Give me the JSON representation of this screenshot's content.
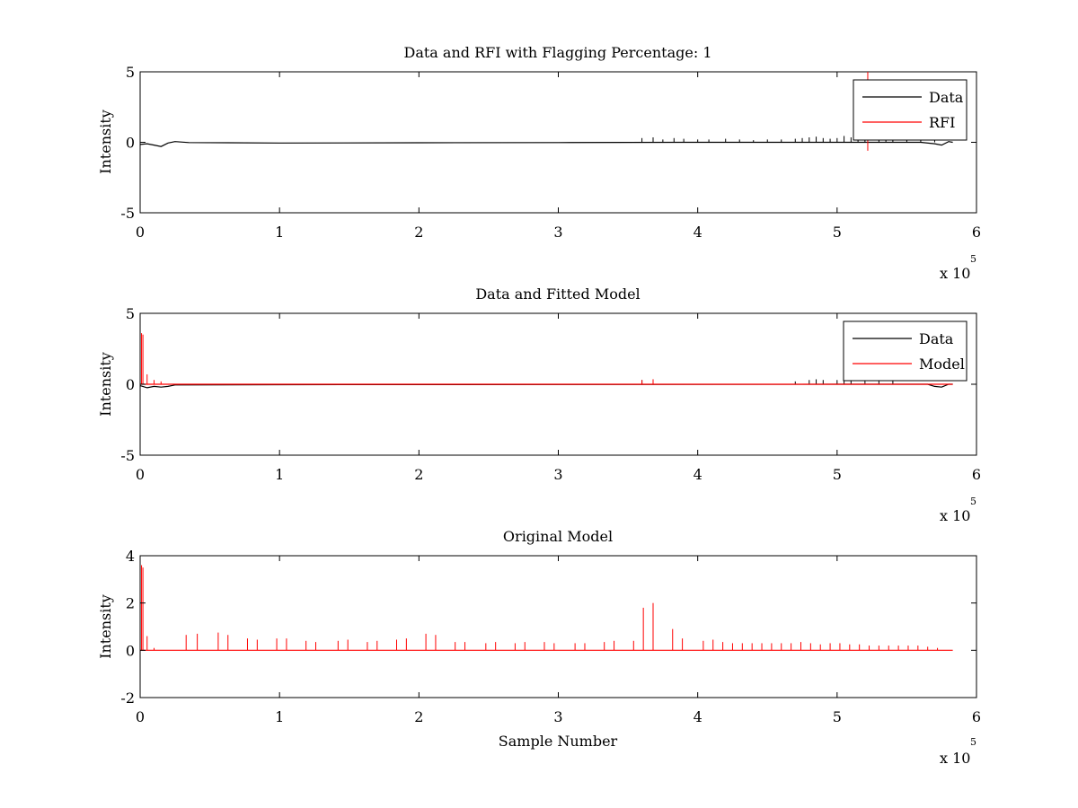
{
  "chart_data": [
    {
      "type": "line",
      "title": "Data and RFI with Flagging Percentage: 1",
      "xlabel": "",
      "ylabel": "Intensity",
      "xlim": [
        0,
        600000
      ],
      "ylim": [
        -5,
        5
      ],
      "x_ticks": [
        "0",
        "1",
        "2",
        "3",
        "4",
        "5",
        "6"
      ],
      "y_ticks": [
        "-5",
        "0",
        "5"
      ],
      "x_multiplier": "x 10",
      "x_exponent": "5",
      "legend": {
        "position": "top-right",
        "entries": [
          {
            "label": "Data",
            "color": "#000000"
          },
          {
            "label": "RFI",
            "color": "#ff0000"
          }
        ]
      },
      "series": [
        {
          "name": "Data",
          "color": "#000000",
          "baseline": [
            [
              0,
              -0.15
            ],
            [
              5000,
              -0.1
            ],
            [
              10000,
              -0.2
            ],
            [
              15000,
              -0.3
            ],
            [
              20000,
              -0.05
            ],
            [
              25000,
              0.05
            ],
            [
              35000,
              -0.02
            ],
            [
              100000,
              -0.05
            ],
            [
              200000,
              -0.03
            ],
            [
              300000,
              -0.02
            ],
            [
              400000,
              0.0
            ],
            [
              500000,
              0.0
            ],
            [
              560000,
              0.0
            ],
            [
              570000,
              -0.1
            ],
            [
              575000,
              -0.2
            ],
            [
              580000,
              0.05
            ],
            [
              583000,
              0.0
            ]
          ],
          "spikes": [
            [
              360000,
              0.3
            ],
            [
              368000,
              0.35
            ],
            [
              375000,
              0.2
            ],
            [
              383000,
              0.3
            ],
            [
              390000,
              0.25
            ],
            [
              400000,
              0.2
            ],
            [
              408000,
              0.2
            ],
            [
              420000,
              0.25
            ],
            [
              430000,
              0.2
            ],
            [
              440000,
              0.15
            ],
            [
              450000,
              0.2
            ],
            [
              460000,
              0.2
            ],
            [
              470000,
              0.25
            ],
            [
              475000,
              0.3
            ],
            [
              480000,
              0.35
            ],
            [
              485000,
              0.4
            ],
            [
              490000,
              0.3
            ],
            [
              495000,
              0.25
            ],
            [
              500000,
              0.3
            ],
            [
              505000,
              0.45
            ],
            [
              510000,
              0.35
            ],
            [
              515000,
              0.3
            ],
            [
              520000,
              0.25
            ],
            [
              530000,
              0.4
            ],
            [
              535000,
              0.3
            ],
            [
              540000,
              0.25
            ],
            [
              550000,
              0.2
            ],
            [
              560000,
              0.25
            ],
            [
              570000,
              0.2
            ]
          ]
        },
        {
          "name": "RFI",
          "color": "#ff0000",
          "spikes": [
            [
              522000,
              5.0
            ],
            [
              522000,
              -0.6
            ]
          ]
        }
      ]
    },
    {
      "type": "line",
      "title": "Data and Fitted Model",
      "xlabel": "",
      "ylabel": "Intensity",
      "xlim": [
        0,
        600000
      ],
      "ylim": [
        -5,
        5
      ],
      "x_ticks": [
        "0",
        "1",
        "2",
        "3",
        "4",
        "5",
        "6"
      ],
      "y_ticks": [
        "-5",
        "0",
        "5"
      ],
      "x_multiplier": "x 10",
      "x_exponent": "5",
      "legend": {
        "position": "top-right",
        "entries": [
          {
            "label": "Data",
            "color": "#000000"
          },
          {
            "label": "Model",
            "color": "#ff0000"
          }
        ]
      },
      "series": [
        {
          "name": "Data",
          "color": "#000000",
          "baseline": [
            [
              0,
              -0.1
            ],
            [
              5000,
              -0.25
            ],
            [
              10000,
              -0.15
            ],
            [
              15000,
              -0.2
            ],
            [
              20000,
              -0.15
            ],
            [
              25000,
              -0.05
            ],
            [
              100000,
              -0.03
            ],
            [
              300000,
              -0.02
            ],
            [
              500000,
              0.0
            ],
            [
              565000,
              0.0
            ],
            [
              570000,
              -0.15
            ],
            [
              575000,
              -0.2
            ],
            [
              580000,
              0.0
            ],
            [
              583000,
              0.0
            ]
          ],
          "spikes": [
            [
              360000,
              0.3
            ],
            [
              368000,
              0.35
            ],
            [
              470000,
              0.2
            ],
            [
              480000,
              0.3
            ],
            [
              485000,
              0.35
            ],
            [
              490000,
              0.3
            ],
            [
              500000,
              0.3
            ],
            [
              505000,
              0.4
            ],
            [
              510000,
              0.35
            ],
            [
              520000,
              0.3
            ],
            [
              530000,
              0.35
            ],
            [
              540000,
              0.25
            ]
          ]
        },
        {
          "name": "Model",
          "color": "#ff0000",
          "baseline": [
            [
              0,
              0.0
            ],
            [
              583000,
              0.0
            ]
          ],
          "spikes": [
            [
              1000,
              3.6
            ],
            [
              2000,
              3.5
            ],
            [
              5000,
              0.7
            ],
            [
              10000,
              0.3
            ],
            [
              15000,
              0.2
            ],
            [
              360000,
              0.3
            ],
            [
              368000,
              0.35
            ]
          ]
        }
      ]
    },
    {
      "type": "line",
      "title": "Original Model",
      "xlabel": "Sample Number",
      "ylabel": "Intensity",
      "xlim": [
        0,
        600000
      ],
      "ylim": [
        -2,
        4
      ],
      "x_ticks": [
        "0",
        "1",
        "2",
        "3",
        "4",
        "5",
        "6"
      ],
      "y_ticks": [
        "-2",
        "0",
        "2",
        "4"
      ],
      "x_multiplier": "x 10",
      "x_exponent": "5",
      "series": [
        {
          "name": "",
          "color": "#ff0000",
          "baseline": [
            [
              0,
              0.0
            ],
            [
              583000,
              0.0
            ]
          ],
          "spikes": [
            [
              1000,
              3.6
            ],
            [
              2000,
              3.5
            ],
            [
              5000,
              0.6
            ],
            [
              10000,
              0.1
            ],
            [
              33000,
              0.65
            ],
            [
              41000,
              0.7
            ],
            [
              56000,
              0.75
            ],
            [
              63000,
              0.65
            ],
            [
              77000,
              0.5
            ],
            [
              84000,
              0.45
            ],
            [
              98000,
              0.5
            ],
            [
              105000,
              0.5
            ],
            [
              119000,
              0.4
            ],
            [
              126000,
              0.35
            ],
            [
              142000,
              0.4
            ],
            [
              149000,
              0.45
            ],
            [
              163000,
              0.35
            ],
            [
              170000,
              0.4
            ],
            [
              184000,
              0.45
            ],
            [
              191000,
              0.5
            ],
            [
              205000,
              0.7
            ],
            [
              212000,
              0.65
            ],
            [
              226000,
              0.35
            ],
            [
              233000,
              0.35
            ],
            [
              248000,
              0.3
            ],
            [
              255000,
              0.35
            ],
            [
              269000,
              0.3
            ],
            [
              276000,
              0.35
            ],
            [
              290000,
              0.35
            ],
            [
              297000,
              0.3
            ],
            [
              312000,
              0.3
            ],
            [
              319000,
              0.3
            ],
            [
              333000,
              0.35
            ],
            [
              340000,
              0.4
            ],
            [
              354000,
              0.4
            ],
            [
              361000,
              1.8
            ],
            [
              368000,
              2.0
            ],
            [
              382000,
              0.9
            ],
            [
              389000,
              0.5
            ],
            [
              404000,
              0.4
            ],
            [
              411000,
              0.45
            ],
            [
              418000,
              0.35
            ],
            [
              425000,
              0.3
            ],
            [
              432000,
              0.3
            ],
            [
              439000,
              0.3
            ],
            [
              446000,
              0.3
            ],
            [
              453000,
              0.3
            ],
            [
              460000,
              0.3
            ],
            [
              467000,
              0.3
            ],
            [
              474000,
              0.35
            ],
            [
              481000,
              0.3
            ],
            [
              488000,
              0.25
            ],
            [
              495000,
              0.3
            ],
            [
              502000,
              0.3
            ],
            [
              509000,
              0.25
            ],
            [
              516000,
              0.25
            ],
            [
              523000,
              0.2
            ],
            [
              530000,
              0.2
            ],
            [
              537000,
              0.2
            ],
            [
              544000,
              0.2
            ],
            [
              551000,
              0.2
            ],
            [
              558000,
              0.2
            ],
            [
              565000,
              0.15
            ],
            [
              572000,
              0.1
            ]
          ]
        }
      ]
    }
  ]
}
